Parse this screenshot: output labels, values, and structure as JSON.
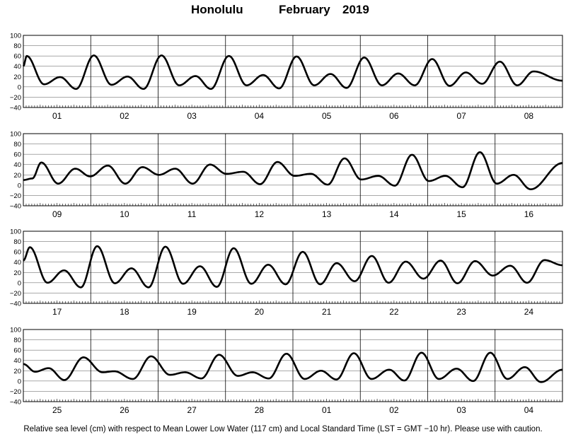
{
  "title": {
    "location": "Honolulu",
    "month": "February",
    "year": "2019"
  },
  "footer": "Relative sea level (cm) with respect to Mean Lower Low Water (117 cm) and Local Standard Time (LST = GMT −10 hr). Please use with caution.",
  "chart_data": {
    "type": "line",
    "y_ticks": [
      "100",
      "80",
      "60",
      "40",
      "20",
      "0",
      "−20",
      "−40"
    ],
    "ylim": [
      -40,
      100
    ],
    "grid": "horizontal lines every 20 cm; vertical lines at midnight",
    "line_color": "#000000",
    "panels": [
      {
        "days": [
          "01",
          "02",
          "03",
          "04",
          "05",
          "06",
          "07",
          "08"
        ],
        "extremes": [
          [
            0,
            40
          ],
          [
            1.2,
            60
          ],
          [
            7.4,
            5
          ],
          [
            13.1,
            19
          ],
          [
            18.8,
            -4
          ],
          [
            25.1,
            61
          ],
          [
            31.4,
            4
          ],
          [
            37.1,
            20
          ],
          [
            42.8,
            -4
          ],
          [
            49.2,
            61
          ],
          [
            55.5,
            3
          ],
          [
            61.3,
            21
          ],
          [
            66.8,
            -4
          ],
          [
            73.2,
            60
          ],
          [
            79.5,
            3
          ],
          [
            85.4,
            23
          ],
          [
            91.1,
            -3
          ],
          [
            97.3,
            59
          ],
          [
            103.6,
            3
          ],
          [
            109.4,
            25
          ],
          [
            115.1,
            -2
          ],
          [
            121.4,
            57
          ],
          [
            127.7,
            3
          ],
          [
            133.5,
            26
          ],
          [
            139.4,
            3
          ],
          [
            145.6,
            54
          ],
          [
            151.8,
            2
          ],
          [
            157.6,
            28
          ],
          [
            163.4,
            6
          ],
          [
            169.7,
            49
          ],
          [
            175.9,
            3
          ],
          [
            181.7,
            30
          ],
          [
            192,
            12
          ]
        ]
      },
      {
        "days": [
          "09",
          "10",
          "11",
          "12",
          "13",
          "14",
          "15",
          "16"
        ],
        "extremes": [
          [
            0,
            10
          ],
          [
            3.2,
            13
          ],
          [
            6.4,
            44
          ],
          [
            12.4,
            3
          ],
          [
            18.5,
            32
          ],
          [
            23.8,
            17
          ],
          [
            30.1,
            38
          ],
          [
            36.3,
            3
          ],
          [
            42.4,
            35
          ],
          [
            48.3,
            20
          ],
          [
            54.1,
            32
          ],
          [
            60.3,
            3
          ],
          [
            66.5,
            40
          ],
          [
            72.3,
            22
          ],
          [
            78.3,
            26
          ],
          [
            84.3,
            2
          ],
          [
            90.5,
            45
          ],
          [
            96.6,
            18
          ],
          [
            102.4,
            22
          ],
          [
            108.4,
            1
          ],
          [
            114.4,
            52
          ],
          [
            120.3,
            11
          ],
          [
            126.4,
            18
          ],
          [
            132.3,
            -1
          ],
          [
            138.4,
            59
          ],
          [
            144.4,
            8
          ],
          [
            150.3,
            18
          ],
          [
            156.4,
            -4
          ],
          [
            162.6,
            64
          ],
          [
            168.6,
            3
          ],
          [
            174.6,
            20
          ],
          [
            180.7,
            -8
          ],
          [
            192,
            43
          ]
        ]
      },
      {
        "days": [
          "17",
          "18",
          "19",
          "20",
          "21",
          "22",
          "23",
          "24"
        ],
        "extremes": [
          [
            0,
            43
          ],
          [
            2.3,
            69
          ],
          [
            8.6,
            0
          ],
          [
            14.5,
            24
          ],
          [
            20.5,
            -9
          ],
          [
            26.3,
            71
          ],
          [
            32.6,
            -1
          ],
          [
            38.5,
            28
          ],
          [
            44.6,
            -9
          ],
          [
            50.6,
            70
          ],
          [
            56.9,
            -2
          ],
          [
            62.9,
            32
          ],
          [
            68.9,
            -8
          ],
          [
            74.9,
            67
          ],
          [
            81.2,
            -2
          ],
          [
            87.2,
            35
          ],
          [
            93.4,
            -3
          ],
          [
            99.5,
            60
          ],
          [
            105.7,
            -3
          ],
          [
            111.6,
            38
          ],
          [
            118,
            3
          ],
          [
            124.1,
            52
          ],
          [
            130.1,
            0
          ],
          [
            136.2,
            41
          ],
          [
            142.5,
            8
          ],
          [
            148.6,
            43
          ],
          [
            154.6,
            -1
          ],
          [
            160.9,
            42
          ],
          [
            167.2,
            14
          ],
          [
            173.4,
            33
          ],
          [
            179.4,
            0
          ],
          [
            185.6,
            44
          ],
          [
            192,
            34
          ]
        ]
      },
      {
        "days": [
          "25",
          "26",
          "27",
          "28",
          "01",
          "02",
          "03",
          "04"
        ],
        "extremes": [
          [
            0,
            33
          ],
          [
            4.2,
            18
          ],
          [
            9,
            25
          ],
          [
            14.6,
            2
          ],
          [
            21.4,
            46
          ],
          [
            28.2,
            17
          ],
          [
            32.4,
            19
          ],
          [
            39,
            4
          ],
          [
            45.5,
            48
          ],
          [
            52.2,
            12
          ],
          [
            57.6,
            17
          ],
          [
            63.4,
            5
          ],
          [
            69.7,
            51
          ],
          [
            76.4,
            10
          ],
          [
            81.6,
            17
          ],
          [
            87.4,
            5
          ],
          [
            93.7,
            53
          ],
          [
            100.2,
            4
          ],
          [
            106,
            20
          ],
          [
            111.5,
            3
          ],
          [
            117.7,
            54
          ],
          [
            124,
            4
          ],
          [
            130.3,
            22
          ],
          [
            135.7,
            1
          ],
          [
            141.8,
            55
          ],
          [
            148,
            4
          ],
          [
            154.3,
            24
          ],
          [
            160.2,
            0
          ],
          [
            166.3,
            55
          ],
          [
            172.4,
            4
          ],
          [
            178.6,
            27
          ],
          [
            184.4,
            -2
          ],
          [
            192,
            22
          ]
        ]
      }
    ]
  }
}
